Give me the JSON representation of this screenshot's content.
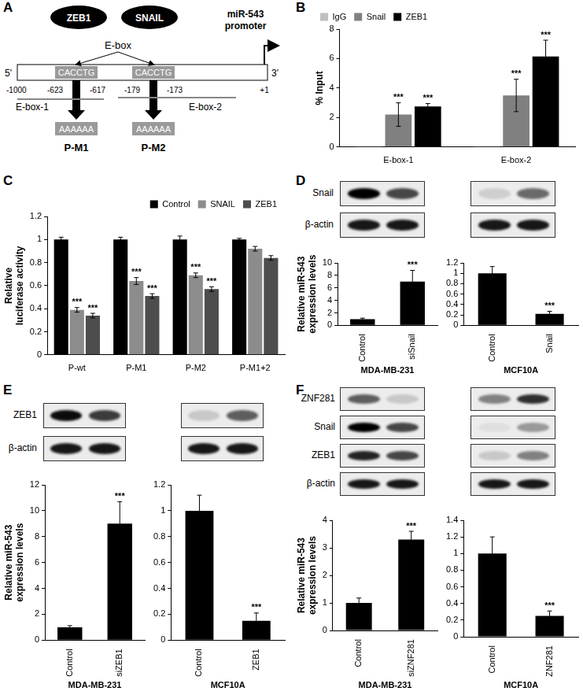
{
  "panel_labels": [
    "A",
    "B",
    "C",
    "D",
    "E",
    "F"
  ],
  "diagram": {
    "factors": [
      "ZEB1",
      "SNAIL"
    ],
    "motif_label": "E-box",
    "promoter_label": [
      "miR-543",
      "promoter"
    ],
    "ends": [
      "5'",
      "3'"
    ],
    "outer_positions": [
      "-1000",
      "+1"
    ],
    "sites": [
      {
        "sequence": "CACCTG",
        "start": "-623",
        "end": "-617",
        "mutant": "AAAAAA",
        "mutant_name": "P-M1"
      },
      {
        "sequence": "CACCTG",
        "start": "-179",
        "end": "-173",
        "mutant": "AAAAAA",
        "mutant_name": "P-M2"
      }
    ],
    "regions": [
      "E-box-1",
      "E-box-2"
    ]
  },
  "blots": [
    {
      "rows": [
        {
          "label": "Snail",
          "lanes": [
            [
              1.0,
              0.7
            ],
            [
              0.12,
              0.55
            ]
          ]
        },
        {
          "label": "β-actin",
          "lanes": [
            [
              0.9,
              0.9
            ],
            [
              0.9,
              0.9
            ]
          ]
        }
      ]
    },
    {
      "rows": [
        {
          "label": "ZEB1",
          "lanes": [
            [
              0.95,
              0.75
            ],
            [
              0.15,
              0.6
            ]
          ]
        },
        {
          "label": "β-actin",
          "lanes": [
            [
              0.9,
              0.9
            ],
            [
              0.9,
              0.9
            ]
          ]
        }
      ]
    },
    {
      "rows": [
        {
          "label": "ZNF281",
          "lanes": [
            [
              0.6,
              0.15
            ],
            [
              0.45,
              0.8
            ]
          ]
        },
        {
          "label": "Snail",
          "lanes": [
            [
              1.0,
              0.7
            ],
            [
              0.05,
              0.35
            ]
          ]
        },
        {
          "label": "ZEB1",
          "lanes": [
            [
              0.85,
              0.7
            ],
            [
              0.15,
              0.45
            ]
          ]
        },
        {
          "label": "β-actin",
          "lanes": [
            [
              0.9,
              0.9
            ],
            [
              0.9,
              0.9
            ]
          ]
        }
      ]
    }
  ],
  "chart_data": [
    {
      "type": "bar",
      "categories": [
        "E-box-1",
        "E-box-2"
      ],
      "series": [
        {
          "name": "IgG",
          "color": "#bfbfbf",
          "values": [
            0.05,
            0.05
          ]
        },
        {
          "name": "Snail",
          "color": "#808080",
          "values": [
            2.2,
            3.5
          ],
          "errors": [
            0.8,
            1.1
          ],
          "annotations": [
            "***",
            "***"
          ]
        },
        {
          "name": "ZEB1",
          "color": "#000000",
          "values": [
            2.75,
            6.15
          ],
          "errors": [
            0.2,
            1.1
          ],
          "annotations": [
            "***",
            "***"
          ]
        }
      ],
      "ylabel": [
        "% Input"
      ],
      "ylim": [
        0,
        8
      ],
      "yticks": [
        0,
        2,
        4,
        6,
        8
      ],
      "grid": false,
      "legend": "upper left"
    },
    {
      "type": "bar",
      "categories": [
        "P-wt",
        "P-M1",
        "P-M2",
        "P-M1+2"
      ],
      "series": [
        {
          "name": "Control",
          "color": "#000000",
          "values": [
            1,
            1,
            1,
            1
          ],
          "errors": [
            0.02,
            0.02,
            0.03,
            0.01
          ]
        },
        {
          "name": "SNAIL",
          "color": "#8c8c8c",
          "values": [
            0.39,
            0.64,
            0.69,
            0.92
          ],
          "errors": [
            0.02,
            0.03,
            0.02,
            0.02
          ],
          "annotations": [
            "***",
            "***",
            "***",
            null
          ]
        },
        {
          "name": "ZEB1",
          "color": "#4d4d4d",
          "values": [
            0.34,
            0.51,
            0.57,
            0.84
          ],
          "errors": [
            0.02,
            0.02,
            0.02,
            0.02
          ],
          "annotations": [
            "***",
            "***",
            "***",
            null
          ]
        }
      ],
      "ylabel": [
        "Relative",
        "luciferase activity"
      ],
      "ylim": [
        0,
        1.2
      ],
      "yticks": [
        0,
        0.2,
        0.4,
        0.6,
        0.8,
        1,
        1.2
      ],
      "grid": false,
      "legend": "upper right"
    },
    {
      "type": "bar",
      "categories": [
        "Control",
        "siSnail"
      ],
      "values": [
        1,
        7.0
      ],
      "errors": [
        0.15,
        1.8
      ],
      "annotations": [
        null,
        "***"
      ],
      "color": "#000000",
      "ylabel": [
        "Relative miR-543",
        "expression levels"
      ],
      "xlabel": "MDA-MB-231",
      "ylim": [
        0,
        10
      ],
      "yticks": [
        0,
        2,
        4,
        6,
        8,
        10
      ],
      "grid": false
    },
    {
      "type": "bar",
      "categories": [
        "Control",
        "Snail"
      ],
      "values": [
        1,
        0.22
      ],
      "errors": [
        0.13,
        0.05
      ],
      "annotations": [
        null,
        "***"
      ],
      "color": "#000000",
      "xlabel": "MCF10A",
      "ylim": [
        0,
        1.2
      ],
      "yticks": [
        0,
        0.2,
        0.4,
        0.6,
        0.8,
        1,
        1.2
      ],
      "grid": false
    },
    {
      "type": "bar",
      "categories": [
        "Control",
        "siZEB1"
      ],
      "values": [
        1,
        9.0
      ],
      "errors": [
        0.12,
        1.7
      ],
      "annotations": [
        null,
        "***"
      ],
      "color": "#000000",
      "ylabel": [
        "Relative miR-543",
        "expression levels"
      ],
      "xlabel": "MDA-MB-231",
      "ylim": [
        0,
        12
      ],
      "yticks": [
        0,
        2,
        4,
        6,
        8,
        10,
        12
      ],
      "grid": false
    },
    {
      "type": "bar",
      "categories": [
        "Control",
        "ZEB1"
      ],
      "values": [
        1,
        0.15
      ],
      "errors": [
        0.12,
        0.06
      ],
      "annotations": [
        null,
        "***"
      ],
      "color": "#000000",
      "xlabel": "MCF10A",
      "ylim": [
        0,
        1.2
      ],
      "yticks": [
        0,
        0.2,
        0.4,
        0.6,
        0.8,
        1,
        1.2
      ],
      "grid": false
    },
    {
      "type": "bar",
      "categories": [
        "Control",
        "siZNF281"
      ],
      "values": [
        1,
        3.3
      ],
      "errors": [
        0.18,
        0.3
      ],
      "annotations": [
        null,
        "***"
      ],
      "color": "#000000",
      "ylabel": [
        "Relative miR-543",
        "expression levels"
      ],
      "xlabel": "MDA-MB-231",
      "ylim": [
        0,
        4
      ],
      "yticks": [
        0,
        1,
        2,
        3,
        4
      ],
      "grid": false
    },
    {
      "type": "bar",
      "categories": [
        "Control",
        "ZNF281"
      ],
      "values": [
        1,
        0.25
      ],
      "errors": [
        0.2,
        0.06
      ],
      "annotations": [
        null,
        "***"
      ],
      "color": "#000000",
      "xlabel": "MCF10A",
      "ylim": [
        0,
        1.4
      ],
      "yticks": [
        0,
        0.2,
        0.4,
        0.6,
        0.8,
        1,
        1.2,
        1.4
      ],
      "grid": false
    }
  ]
}
